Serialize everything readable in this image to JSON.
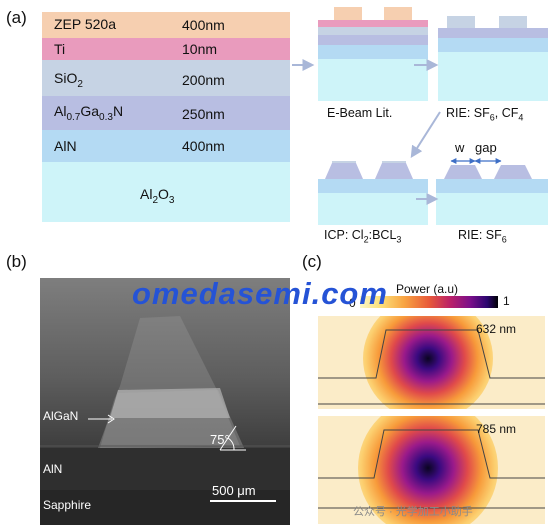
{
  "panel_a": {
    "label": "(a)",
    "layers": [
      {
        "name_parts": [
          "ZEP 520a"
        ],
        "thickness": "400nm",
        "color": "#f6cfb0"
      },
      {
        "name_parts": [
          "Ti"
        ],
        "thickness": "10nm",
        "color": "#e99bbd"
      },
      {
        "name_parts": [
          "SiO",
          "2"
        ],
        "thickness": "200nm",
        "color": "#c6d3e4"
      },
      {
        "name_parts": [
          "Al",
          "0.7",
          "Ga",
          "0.3",
          "N"
        ],
        "thickness": "250nm",
        "color": "#b8bee2"
      },
      {
        "name_parts": [
          "AlN"
        ],
        "thickness": "400nm",
        "color": "#b4daf3"
      },
      {
        "name_parts": [
          "Al",
          "2",
          "O",
          "3"
        ],
        "thickness": "",
        "color": "#cef4f9"
      }
    ],
    "steps": {
      "ebeam": "E-Beam Lit.",
      "rie1": "RIE: SF",
      "rie1_sub": "6",
      "rie1_sep": ", CF",
      "rie1_sub2": "4",
      "icp": "ICP: Cl",
      "icp_sub": "2",
      "icp_mid": ":BCL",
      "icp_sub2": "3",
      "rie2": "RIE: SF",
      "rie2_sub": "6"
    },
    "dim_w": "w",
    "dim_gap": "gap",
    "arrow_color": "#a9b7d8"
  },
  "panel_b": {
    "label": "(b)",
    "algan": "AlGaN",
    "aln": "AlN",
    "sapphire": "Sapphire",
    "angle": "75°",
    "scalebar": "500 μm"
  },
  "panel_c": {
    "label": "(c)",
    "colorbar_title": "Power (a.u)",
    "cb_min": "0",
    "cb_max": "1",
    "modes": [
      {
        "wavelength": "632 nm"
      },
      {
        "wavelength": "785 nm"
      }
    ]
  },
  "watermark": "omedasemi.com",
  "watermark2": "公众号 · 光学加工小助手"
}
